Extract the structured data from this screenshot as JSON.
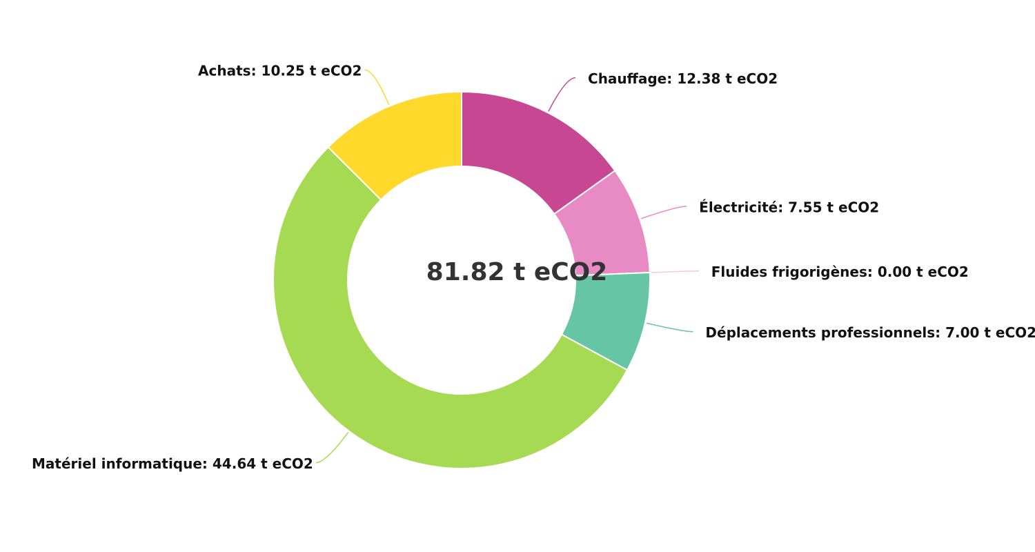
{
  "chart_data": {
    "type": "donut",
    "center_label": "81.82 t eCO2",
    "values": [
      12.38,
      7.55,
      0.0,
      7.0,
      44.64,
      10.25
    ],
    "value_labels": [
      "Chauffage: 12.38 t eCO2",
      "Électricité: 7.55 t eCO2",
      "Fluides frigorigènes: 0.00 t eCO2",
      "Déplacements professionnels: 7.00 t eCO2",
      "Matériel informatique: 44.64 t eCO2",
      "Achats: 10.25 t eCO2"
    ],
    "colors": [
      "#c74793",
      "#e88bc4",
      "#f9c5e0",
      "#66c5a4",
      "#a6da52",
      "#fed82b"
    ]
  }
}
